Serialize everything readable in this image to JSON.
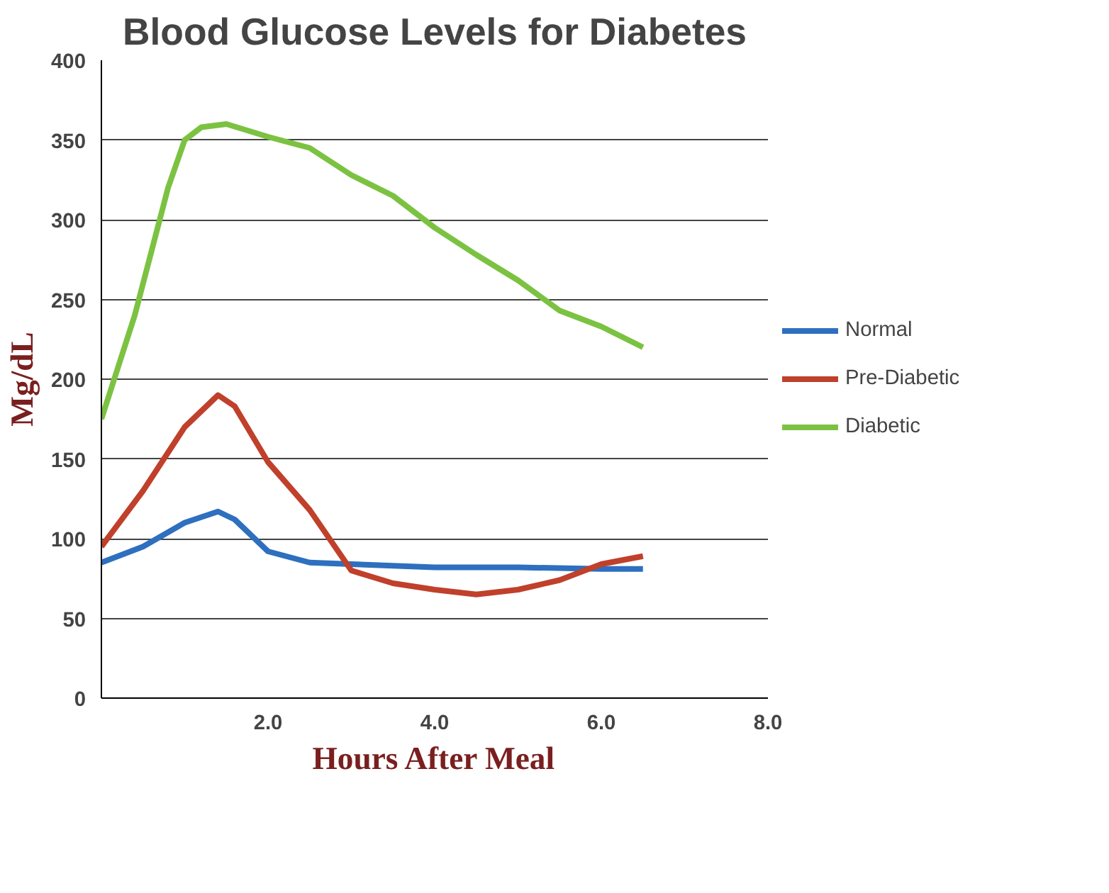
{
  "chart_data": {
    "type": "line",
    "title": "Blood Glucose Levels for Diabetes",
    "xlabel": "Hours After Meal",
    "ylabel": "Mg/dL",
    "xlim": [
      0,
      8
    ],
    "ylim": [
      0,
      400
    ],
    "xticks": [
      {
        "value": 2,
        "label": "2.0"
      },
      {
        "value": 4,
        "label": "4.0"
      },
      {
        "value": 6,
        "label": "6.0"
      },
      {
        "value": 8,
        "label": "8.0"
      }
    ],
    "yticks": [
      0,
      50,
      100,
      150,
      200,
      250,
      300,
      350,
      400
    ],
    "grid": "y",
    "legend": "right",
    "marker": "none",
    "line_style": "solid",
    "series": [
      {
        "name": "Normal",
        "color": "#2e6fbf",
        "x": [
          0,
          0.5,
          1.0,
          1.4,
          1.6,
          2.0,
          2.5,
          3.0,
          4.0,
          5.0,
          6.0,
          6.5
        ],
        "values": [
          85,
          95,
          110,
          117,
          112,
          92,
          85,
          84,
          82,
          82,
          81,
          81
        ]
      },
      {
        "name": "Pre-Diabetic",
        "color": "#c0402b",
        "x": [
          0,
          0.5,
          1.0,
          1.4,
          1.6,
          2.0,
          2.5,
          3.0,
          3.5,
          4.0,
          4.5,
          5.0,
          5.5,
          6.0,
          6.5
        ],
        "values": [
          95,
          130,
          170,
          190,
          183,
          148,
          118,
          80,
          72,
          68,
          65,
          68,
          74,
          84,
          89
        ]
      },
      {
        "name": "Diabetic",
        "color": "#7cc242",
        "x": [
          0,
          0.4,
          0.8,
          1.0,
          1.2,
          1.5,
          2.0,
          2.5,
          3.0,
          3.5,
          4.0,
          4.5,
          5.0,
          5.5,
          6.0,
          6.5
        ],
        "values": [
          175,
          240,
          320,
          350,
          358,
          360,
          352,
          345,
          328,
          315,
          295,
          278,
          262,
          243,
          233,
          220
        ]
      }
    ]
  }
}
